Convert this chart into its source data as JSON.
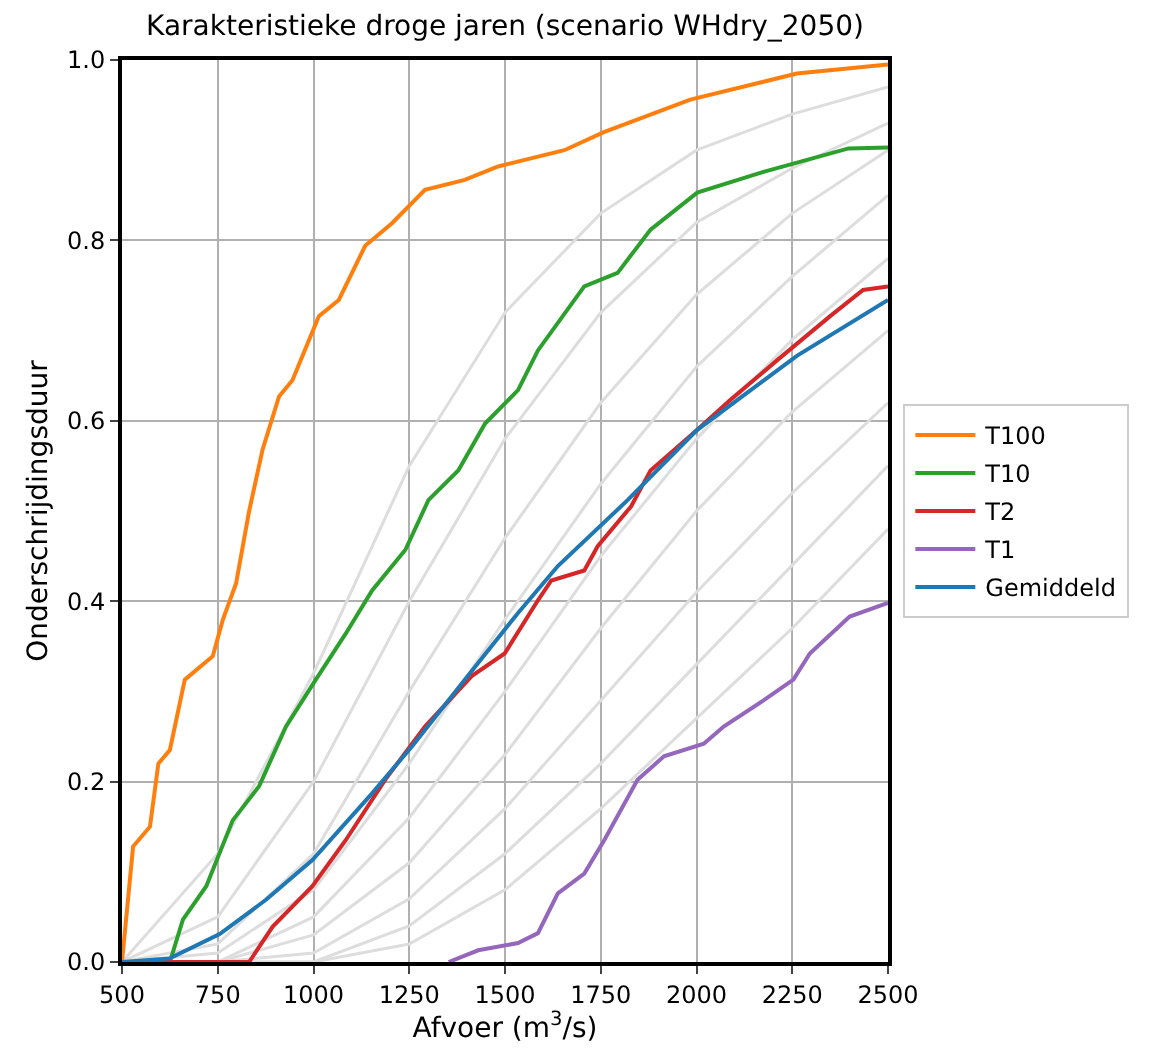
{
  "chart_data": {
    "type": "line",
    "title": "Karakteristieke droge jaren (scenario WHdry_2050)",
    "xlabel": "Afvoer (m$^{3}$/s)",
    "ylabel": "Onderschrijdingsduur",
    "xlim": [
      500,
      2500
    ],
    "xticks": [
      500,
      750,
      1000,
      1250,
      1500,
      1750,
      2000,
      2250,
      2500
    ],
    "ylim": [
      0,
      1
    ],
    "yticks": [
      {
        "value": 0,
        "label": "0.0"
      },
      {
        "value": 0.2,
        "label": "0.2"
      },
      {
        "value": 0.4,
        "label": "0.4"
      },
      {
        "value": 0.6,
        "label": "0.6"
      },
      {
        "value": 0.8,
        "label": "0.8"
      },
      {
        "value": 1,
        "label": "1.0"
      }
    ],
    "grid": true,
    "legend": "right",
    "marker": "none",
    "line_style": "solid",
    "series": [
      {
        "color": "#dddddd",
        "x": [
          500,
          750,
          1000,
          1250,
          1500,
          1750,
          2000,
          2250,
          2500
        ],
        "values": [
          0,
          0.12,
          0.32,
          0.55,
          0.72,
          0.83,
          0.9,
          0.94,
          0.97
        ]
      },
      {
        "color": "#dddddd",
        "x": [
          500,
          750,
          1000,
          1250,
          1500,
          1750,
          2000,
          2250,
          2500
        ],
        "values": [
          0,
          0.05,
          0.2,
          0.4,
          0.58,
          0.72,
          0.82,
          0.88,
          0.93
        ]
      },
      {
        "color": "#dddddd",
        "x": [
          500,
          750,
          1000,
          1250,
          1500,
          1750,
          2000,
          2250,
          2500
        ],
        "values": [
          0,
          0.02,
          0.12,
          0.3,
          0.47,
          0.62,
          0.74,
          0.83,
          0.9
        ]
      },
      {
        "color": "#dddddd",
        "x": [
          500,
          750,
          1000,
          1250,
          1500,
          1750,
          2000,
          2250,
          2500
        ],
        "values": [
          0,
          0.01,
          0.08,
          0.22,
          0.38,
          0.53,
          0.66,
          0.76,
          0.85
        ]
      },
      {
        "color": "#dddddd",
        "x": [
          500,
          750,
          1000,
          1250,
          1500,
          1750,
          2000,
          2250,
          2500
        ],
        "values": [
          0,
          0,
          0.05,
          0.16,
          0.3,
          0.45,
          0.58,
          0.69,
          0.78
        ]
      },
      {
        "color": "#dddddd",
        "x": [
          500,
          750,
          1000,
          1250,
          1500,
          1750,
          2000,
          2250,
          2500
        ],
        "values": [
          0,
          0,
          0.03,
          0.11,
          0.23,
          0.37,
          0.5,
          0.61,
          0.7
        ]
      },
      {
        "color": "#dddddd",
        "x": [
          500,
          750,
          1000,
          1250,
          1500,
          1750,
          2000,
          2250,
          2500
        ],
        "values": [
          0,
          0,
          0.01,
          0.07,
          0.17,
          0.29,
          0.41,
          0.52,
          0.62
        ]
      },
      {
        "color": "#dddddd",
        "x": [
          500,
          750,
          1000,
          1250,
          1500,
          1750,
          2000,
          2250,
          2500
        ],
        "values": [
          0,
          0,
          0,
          0.04,
          0.12,
          0.22,
          0.33,
          0.44,
          0.55
        ]
      },
      {
        "color": "#dddddd",
        "x": [
          500,
          750,
          1000,
          1250,
          1500,
          1750,
          2000,
          2250,
          2500
        ],
        "values": [
          0,
          0,
          0,
          0.02,
          0.08,
          0.17,
          0.27,
          0.37,
          0.48
        ]
      },
      {
        "name": "T100",
        "color": "#ff7f0e",
        "x": [
          500,
          529,
          573,
          595,
          625,
          664,
          737,
          763,
          798,
          832,
          867,
          910,
          945,
          1014,
          1066,
          1135,
          1205,
          1291,
          1395,
          1482,
          1655,
          1758,
          1984,
          2262,
          2500
        ],
        "values": [
          0,
          0.128,
          0.15,
          0.22,
          0.235,
          0.313,
          0.339,
          0.379,
          0.42,
          0.5,
          0.568,
          0.627,
          0.645,
          0.716,
          0.734,
          0.794,
          0.819,
          0.856,
          0.867,
          0.882,
          0.9,
          0.92,
          0.956,
          0.985,
          0.995
        ]
      },
      {
        "name": "T10",
        "color": "#2ca02c",
        "x": [
          625,
          659,
          720,
          789,
          858,
          928,
          1006,
          1084,
          1153,
          1240,
          1300,
          1378,
          1448,
          1534,
          1586,
          1707,
          1794,
          1880,
          2002,
          2175,
          2397,
          2500
        ],
        "values": [
          0,
          0.047,
          0.084,
          0.157,
          0.195,
          0.261,
          0.313,
          0.364,
          0.412,
          0.457,
          0.512,
          0.545,
          0.597,
          0.634,
          0.678,
          0.749,
          0.764,
          0.812,
          0.853,
          0.876,
          0.902,
          0.903
        ]
      },
      {
        "name": "T2",
        "color": "#d62728",
        "x": [
          500,
          832,
          893,
          997,
          1084,
          1187,
          1291,
          1413,
          1499,
          1586,
          1621,
          1707,
          1742,
          1829,
          1880,
          2002,
          2088,
          2210,
          2349,
          2435,
          2500
        ],
        "values": [
          0,
          0,
          0.039,
          0.084,
          0.135,
          0.202,
          0.261,
          0.317,
          0.342,
          0.401,
          0.423,
          0.434,
          0.461,
          0.505,
          0.545,
          0.59,
          0.623,
          0.667,
          0.716,
          0.745,
          0.749
        ]
      },
      {
        "name": "T1",
        "color": "#9467bd",
        "x": [
          1353,
          1430,
          1534,
          1586,
          1638,
          1707,
          1759,
          1846,
          1915,
          2019,
          2071,
          2175,
          2253,
          2296,
          2400,
          2500
        ],
        "values": [
          0,
          0.013,
          0.021,
          0.032,
          0.076,
          0.098,
          0.135,
          0.202,
          0.228,
          0.242,
          0.261,
          0.29,
          0.313,
          0.342,
          0.383,
          0.398
        ]
      },
      {
        "name": "Gemiddeld",
        "color": "#1f77b4",
        "x": [
          500,
          625,
          755,
          876,
          997,
          1153,
          1257,
          1395,
          1534,
          1638,
          1820,
          2002,
          2262,
          2500
        ],
        "values": [
          0,
          0.004,
          0.031,
          0.069,
          0.113,
          0.187,
          0.239,
          0.313,
          0.387,
          0.439,
          0.512,
          0.59,
          0.672,
          0.734
        ]
      }
    ]
  }
}
